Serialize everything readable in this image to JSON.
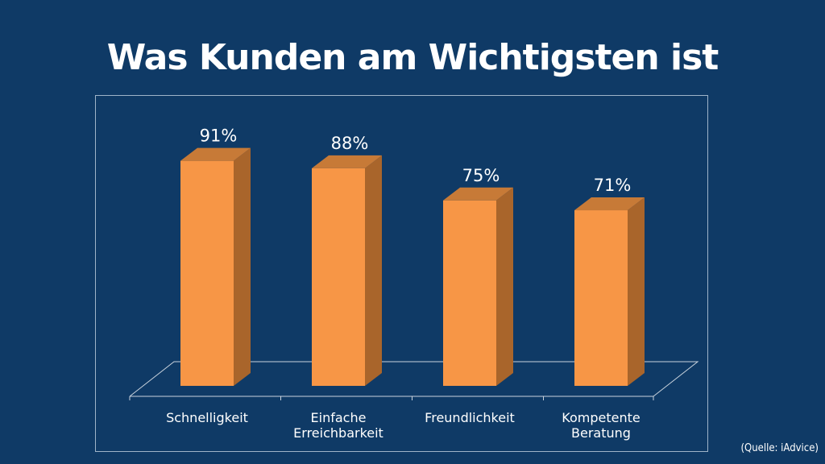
{
  "title": "Was Kunden am Wichtigsten ist",
  "source": "(Quelle: iAdvice)",
  "colors": {
    "background": "#0f3a66",
    "bar_front": "#f79646",
    "bar_side": "#a9652b",
    "bar_top": "#c77a37",
    "text": "#ffffff"
  },
  "chart_data": {
    "type": "bar",
    "categories": [
      [
        "Schnelligkeit"
      ],
      [
        "Einfache",
        "Erreichbarkeit"
      ],
      [
        "Freundlichkeit"
      ],
      [
        "Kompetente",
        "Beratung"
      ]
    ],
    "values": [
      91,
      88,
      75,
      71
    ],
    "data_labels": [
      "91%",
      "88%",
      "75%",
      "71%"
    ],
    "title": "",
    "xlabel": "",
    "ylabel": "",
    "ylim": [
      0,
      100
    ],
    "grid": false,
    "legend": "none",
    "style": "3d-column"
  }
}
